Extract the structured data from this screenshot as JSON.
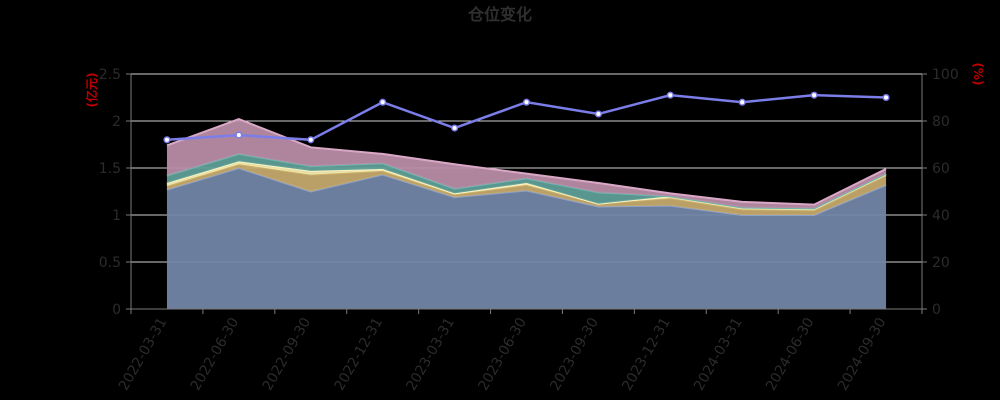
{
  "chart_data": {
    "type": "area",
    "title": "仓位变化",
    "ylabel_left": "(亿元)",
    "ylabel_right": "(%)",
    "ylim_left": [
      0,
      2.5
    ],
    "ylim_right": [
      0,
      100
    ],
    "yticks_left": [
      "0",
      "0.5",
      "1",
      "1.5",
      "2",
      "2.5"
    ],
    "yticks_right": [
      "0",
      "20",
      "40",
      "60",
      "80",
      "100"
    ],
    "categories": [
      "2022-03-31",
      "2022-06-30",
      "2022-09-30",
      "2022-12-31",
      "2023-03-31",
      "2023-06-30",
      "2023-09-30",
      "2023-12-31",
      "2024-03-31",
      "2024-06-30",
      "2024-09-30"
    ],
    "grid": true,
    "series": [
      {
        "axis": "left",
        "stacked": true,
        "values": [
          1.27,
          1.5,
          1.25,
          1.43,
          1.19,
          1.26,
          1.09,
          1.1,
          1.0,
          1.0,
          1.32
        ]
      },
      {
        "axis": "left",
        "stacked": true,
        "values": [
          0.04,
          0.04,
          0.18,
          0.04,
          0.03,
          0.06,
          0.03,
          0.08,
          0.06,
          0.05,
          0.1
        ]
      },
      {
        "axis": "left",
        "stacked": true,
        "values": [
          0.03,
          0.03,
          0.04,
          0.02,
          0.01,
          0.02,
          0.0,
          0.02,
          0.02,
          0.02,
          0.02
        ]
      },
      {
        "axis": "left",
        "stacked": true,
        "values": [
          0.08,
          0.08,
          0.05,
          0.06,
          0.05,
          0.05,
          0.12,
          0.0,
          0.0,
          0.0,
          0.0
        ]
      },
      {
        "axis": "left",
        "stacked": true,
        "values": [
          0.32,
          0.37,
          0.2,
          0.1,
          0.26,
          0.05,
          0.1,
          0.03,
          0.06,
          0.04,
          0.05
        ]
      },
      {
        "axis": "right",
        "type": "line",
        "values": [
          72,
          74,
          72,
          88,
          77,
          88,
          83,
          91,
          88,
          91,
          90
        ]
      }
    ]
  },
  "colors": {
    "areas": [
      "#7185a6",
      "#c4a96b",
      "#f2e9ae",
      "#5e9e97",
      "#b88ca6"
    ],
    "edges": [
      "#8ea1c7",
      "#c9b06c",
      "#fbf3c0",
      "#6fb5ad",
      "#d9a8c6"
    ],
    "line": "#7b7de8",
    "grid": "#cfcfcf",
    "axis": "#7a7a7a",
    "axis_title": "#c00000",
    "text": "#2b2b2b"
  }
}
